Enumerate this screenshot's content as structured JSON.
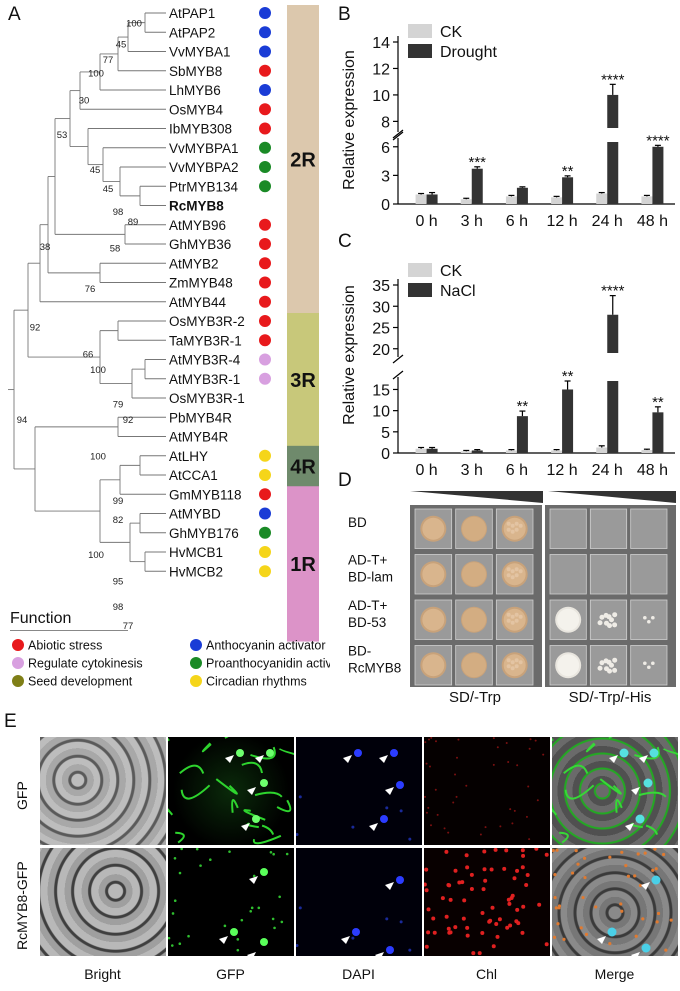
{
  "panels": {
    "A": "A",
    "B": "B",
    "C": "C",
    "D": "D",
    "E": "E"
  },
  "tree": {
    "taxa": [
      {
        "name": "AtPAP1",
        "func": "anthocyanin"
      },
      {
        "name": "AtPAP2",
        "func": "anthocyanin"
      },
      {
        "name": "VvMYBA1",
        "func": "anthocyanin"
      },
      {
        "name": "SbMYB8",
        "func": "abiotic"
      },
      {
        "name": "LhMYB6",
        "func": "anthocyanin"
      },
      {
        "name": "OsMYB4",
        "func": "abiotic"
      },
      {
        "name": "IbMYB308",
        "func": "abiotic"
      },
      {
        "name": "VvMYBPA1",
        "func": "proanthocyanidin"
      },
      {
        "name": "VvMYBPA2",
        "func": "proanthocyanidin"
      },
      {
        "name": "PtrMYB134",
        "func": "proanthocyanidin"
      },
      {
        "name": "RcMYB8",
        "func": "",
        "bold": true
      },
      {
        "name": "AtMYB96",
        "func": "abiotic"
      },
      {
        "name": "GhMYB36",
        "func": "abiotic"
      },
      {
        "name": "AtMYB2",
        "func": "abiotic"
      },
      {
        "name": "ZmMYB48",
        "func": "abiotic"
      },
      {
        "name": "AtMYB44",
        "func": "abiotic"
      },
      {
        "name": "OsMYB3R-2",
        "func": "abiotic"
      },
      {
        "name": "TaMYB3R-1",
        "func": "abiotic"
      },
      {
        "name": "AtMYB3R-4",
        "func": "cytokinesis"
      },
      {
        "name": "AtMYB3R-1",
        "func": "cytokinesis"
      },
      {
        "name": "OsMYB3R-1",
        "func": ""
      },
      {
        "name": "PbMYB4R",
        "func": ""
      },
      {
        "name": "AtMYB4R",
        "func": ""
      },
      {
        "name": "AtLHY",
        "func": "circadian"
      },
      {
        "name": "AtCCA1",
        "func": "circadian"
      },
      {
        "name": "GmMYB118",
        "func": "abiotic"
      },
      {
        "name": "AtMYBD",
        "func": "anthocyanin"
      },
      {
        "name": "GhMYB176",
        "func": "proanthocyanidin"
      },
      {
        "name": "HvMCB1",
        "func": "circadian"
      },
      {
        "name": "HvMCB2",
        "func": "circadian"
      }
    ],
    "bootstraps": [
      "100",
      "45",
      "77",
      "100",
      "30",
      "53",
      "45",
      "45",
      "98",
      "89",
      "38",
      "58",
      "92",
      "76",
      "94",
      "66",
      "100",
      "79",
      "92",
      "100",
      "99",
      "82",
      "100",
      "95",
      "98",
      "77"
    ],
    "groups": [
      {
        "label": "2R",
        "color": "#dcc8ad"
      },
      {
        "label": "3R",
        "color": "#c8c87a"
      },
      {
        "label": "4R",
        "color": "#6f8a6c"
      },
      {
        "label": "1R",
        "color": "#dc93c8"
      }
    ],
    "colors": {
      "abiotic": "#e8191c",
      "cytokinesis": "#d8a0e0",
      "seed": "#7f7f17",
      "anthocyanin": "#1a3cd6",
      "proanthocyanidin": "#1a8a26",
      "circadian": "#f5d51a"
    }
  },
  "legend": {
    "title": "Function",
    "items": [
      {
        "key": "abiotic",
        "label": "Abiotic stress"
      },
      {
        "key": "anthocyanin",
        "label": "Anthocyanin activator"
      },
      {
        "key": "cytokinesis",
        "label": "Regulate cytokinesis"
      },
      {
        "key": "proanthocyanidin",
        "label": "Proanthocyanidin activator"
      },
      {
        "key": "seed",
        "label": "Seed development"
      },
      {
        "key": "circadian",
        "label": "Circadian rhythms"
      }
    ]
  },
  "chart_data": [
    {
      "type": "bar",
      "panel": "B",
      "categories": [
        "0 h",
        "3 h",
        "6 h",
        "12 h",
        "24 h",
        "48 h"
      ],
      "series": [
        {
          "name": "CK",
          "values": [
            1.0,
            0.5,
            0.8,
            0.7,
            1.1,
            0.8
          ],
          "errors": [
            0.1,
            0.1,
            0.1,
            0.1,
            0.1,
            0.1
          ],
          "color": "#d4d4d4"
        },
        {
          "name": "Drought",
          "values": [
            1.0,
            3.7,
            1.7,
            2.8,
            10.0,
            6.0
          ],
          "errors": [
            0.2,
            0.2,
            0.1,
            0.15,
            0.8,
            0.15
          ],
          "color": "#333333"
        }
      ],
      "significance": [
        "",
        "***",
        "",
        "**",
        "****",
        "****"
      ],
      "ylabel": "Relative expression",
      "axis_break": [
        6.5,
        7.5
      ],
      "yticks_lower": [
        0,
        3,
        6
      ],
      "yticks_upper": [
        8,
        10,
        12,
        14
      ]
    },
    {
      "type": "bar",
      "panel": "C",
      "categories": [
        "0 h",
        "3 h",
        "6 h",
        "12 h",
        "24 h",
        "48 h"
      ],
      "series": [
        {
          "name": "CK",
          "values": [
            1.0,
            0.4,
            0.6,
            0.6,
            1.3,
            0.7
          ],
          "errors": [
            0.3,
            0.2,
            0.2,
            0.2,
            0.4,
            0.2
          ],
          "color": "#d4d4d4"
        },
        {
          "name": "NaCl",
          "values": [
            1.0,
            0.6,
            8.7,
            15.0,
            28.0,
            9.6
          ],
          "errors": [
            0.3,
            0.2,
            1.2,
            2.3,
            4.5,
            1.3
          ],
          "color": "#333333"
        }
      ],
      "significance": [
        "",
        "",
        "**",
        "**",
        "****",
        "**"
      ],
      "ylabel": "Relative expression",
      "axis_break": [
        17,
        19
      ],
      "yticks_lower": [
        0,
        5,
        10,
        15
      ],
      "yticks_upper": [
        20,
        25,
        30,
        35
      ]
    }
  ],
  "yeast": {
    "rows": [
      "BD",
      "AD-T+\nBD-lam",
      "AD-T+\nBD-53",
      "BD-\nRcMYB8"
    ],
    "row_lines": [
      [
        "BD"
      ],
      [
        "AD-T+",
        "BD-lam"
      ],
      [
        "AD-T+",
        "BD-53"
      ],
      [
        "BD-",
        "RcMYB8"
      ]
    ],
    "media": [
      "SD/-Trp",
      "SD/-Trp/-His"
    ],
    "growth_trp": [
      [
        3,
        3,
        3
      ],
      [
        3,
        3,
        3
      ],
      [
        3,
        3,
        3
      ],
      [
        3,
        3,
        3
      ]
    ],
    "growth_his": [
      [
        0,
        0,
        0
      ],
      [
        0,
        0,
        0
      ],
      [
        3,
        2,
        1
      ],
      [
        3,
        2,
        1
      ]
    ]
  },
  "micro": {
    "rows": [
      "GFP",
      "RcMYB8-GFP"
    ],
    "cols": [
      "Bright",
      "GFP",
      "DAPI",
      "Chl",
      "Merge"
    ]
  }
}
